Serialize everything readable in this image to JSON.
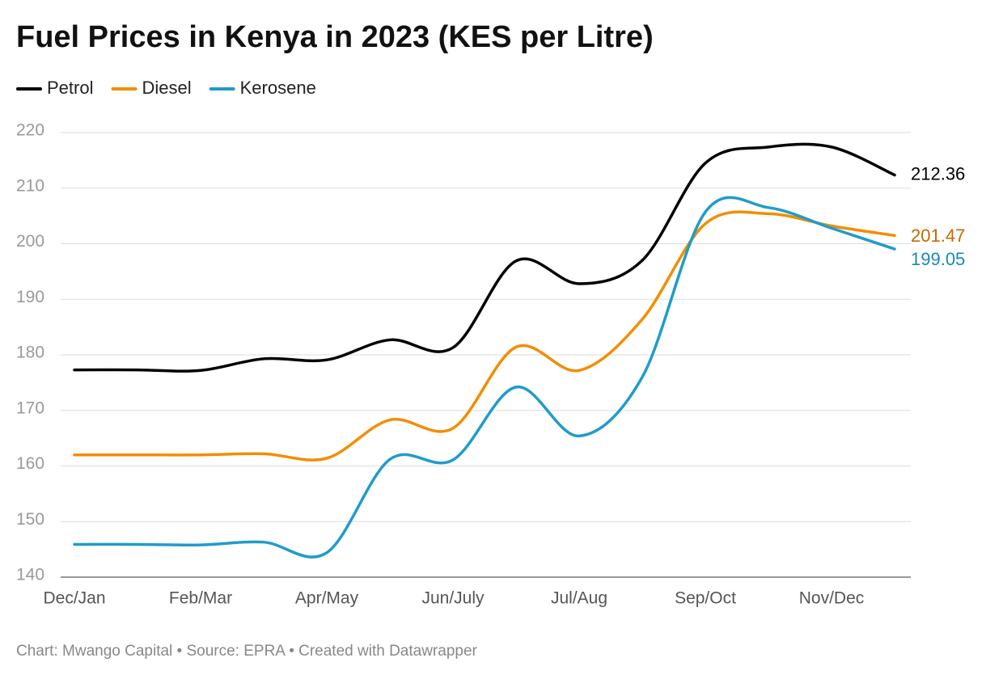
{
  "chart_data": {
    "type": "line",
    "title": "Fuel Prices in Kenya in 2023 (KES per Litre)",
    "source": "Chart: Mwango Capital • Source: EPRA • Created with Datawrapper",
    "categories": [
      "Dec/Jan",
      null,
      "Feb/Mar",
      null,
      "Apr/May",
      null,
      "Jun/July",
      null,
      "Jul/Aug",
      null,
      "Sep/Oct",
      null,
      "Nov/Dec",
      null
    ],
    "series": [
      {
        "name": "Petrol",
        "color": "#000000",
        "label_color": "#000000",
        "values": [
          177.3,
          177.3,
          177.2,
          179.3,
          179.1,
          182.7,
          181.3,
          196.9,
          192.8,
          197.0,
          214.5,
          217.4,
          217.4,
          212.36
        ]
      },
      {
        "name": "Diesel",
        "color": "#f28e00",
        "label_color": "#c46a00",
        "values": [
          162.0,
          162.0,
          162.0,
          162.2,
          161.4,
          168.3,
          166.8,
          181.4,
          177.2,
          186.4,
          203.6,
          205.4,
          203.2,
          201.47
        ]
      },
      {
        "name": "Kerosene",
        "color": "#1f9ccc",
        "label_color": "#1a8ab5",
        "values": [
          145.9,
          145.9,
          145.8,
          146.3,
          144.4,
          161.2,
          161.1,
          174.2,
          165.4,
          176.0,
          205.7,
          206.5,
          202.8,
          199.05
        ]
      }
    ],
    "ylim": [
      140,
      220
    ],
    "yticks": [
      140,
      150,
      160,
      170,
      180,
      190,
      200,
      210,
      220
    ],
    "grid": true,
    "legend": "top-left"
  }
}
